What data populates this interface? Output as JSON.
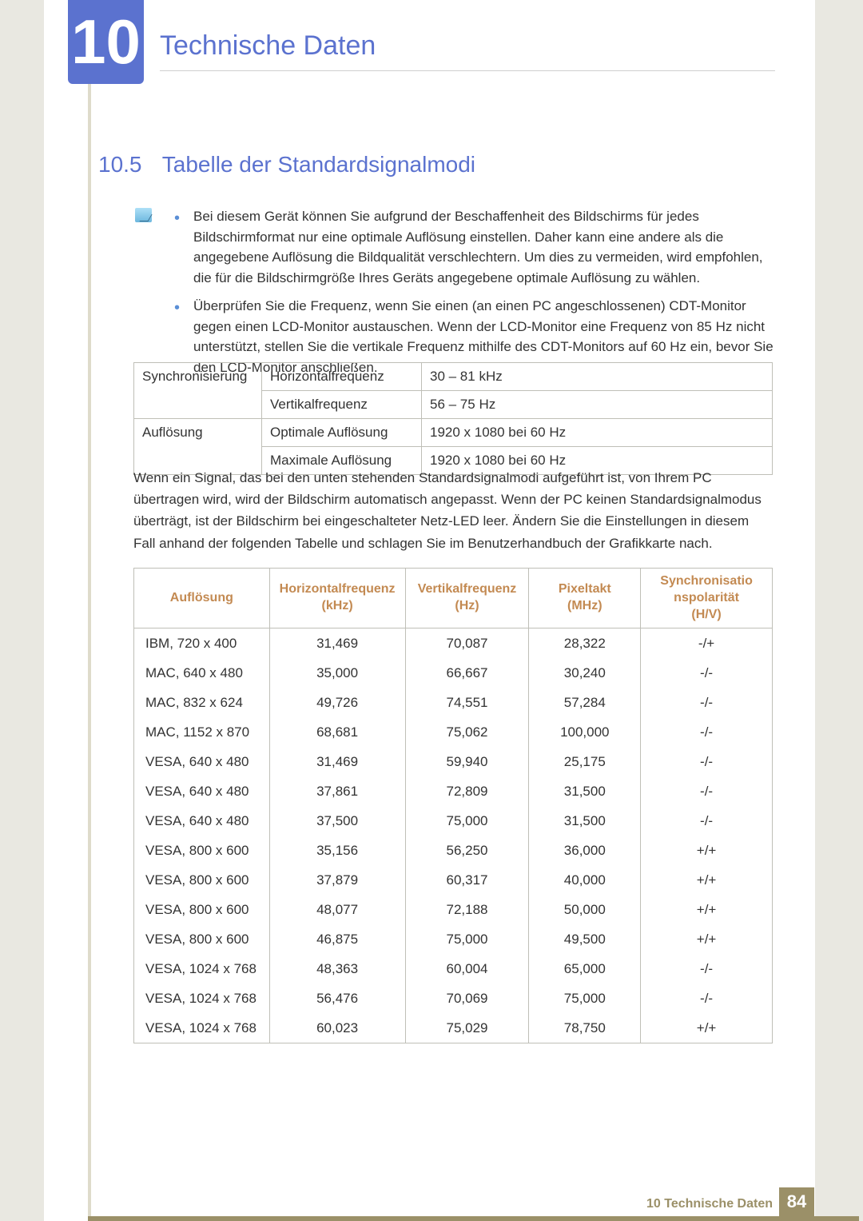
{
  "chapter": {
    "number": "10",
    "title": "Technische Daten"
  },
  "section": {
    "number": "10.5",
    "title": "Tabelle der Standardsignalmodi"
  },
  "bullets": [
    "Bei diesem Gerät können Sie aufgrund der Beschaffenheit des Bildschirms für jedes Bildschirmformat nur eine optimale Auflösung einstellen. Daher kann eine andere als die angegebene Auflösung die Bildqualität verschlechtern. Um dies zu vermeiden, wird empfohlen, die für die Bildschirmgröße Ihres Geräts angegebene optimale Auflösung zu wählen.",
    "Überprüfen Sie die Frequenz, wenn Sie einen (an einen PC angeschlossenen) CDT-Monitor gegen einen LCD-Monitor austauschen. Wenn der LCD-Monitor eine Frequenz von 85 Hz nicht unterstützt, stellen Sie die vertikale Frequenz mithilfe des CDT-Monitors auf 60 Hz ein, bevor Sie den LCD-Monitor anschließen."
  ],
  "spec_rows": [
    {
      "a": "Synchronisierung",
      "b": "Horizontalfrequenz",
      "c": "30 – 81 kHz",
      "rowspan": 2
    },
    {
      "a": "",
      "b": "Vertikalfrequenz",
      "c": "56 – 75 Hz"
    },
    {
      "a": "Auflösung",
      "b": "Optimale Auflösung",
      "c": "1920 x 1080 bei 60 Hz",
      "rowspan": 2
    },
    {
      "a": "",
      "b": "Maximale Auflösung",
      "c": "1920 x 1080 bei 60 Hz"
    }
  ],
  "note_paragraph": "Wenn ein Signal, das bei den unten stehenden Standardsignalmodi aufgeführt ist, von Ihrem PC übertragen wird, wird der Bildschirm automatisch angepasst. Wenn der PC keinen Standardsignalmodus überträgt, ist der Bildschirm bei eingeschalteter Netz-LED leer. Ändern Sie die Einstellungen in diesem Fall anhand der folgenden Tabelle und schlagen Sie im Benutzerhandbuch der Grafikkarte nach.",
  "signal": {
    "headers": [
      "Auflösung",
      "Horizontalfrequenz (kHz)",
      "Vertikalfrequenz (Hz)",
      "Pixeltakt (MHz)",
      "Synchronisationspolarität (H/V)"
    ],
    "col_widths": [
      "170px",
      "170px",
      "155px",
      "140px",
      "165px"
    ],
    "rows": [
      [
        "IBM, 720 x 400",
        "31,469",
        "70,087",
        "28,322",
        "-/+"
      ],
      [
        "MAC, 640 x 480",
        "35,000",
        "66,667",
        "30,240",
        "-/-"
      ],
      [
        "MAC, 832 x 624",
        "49,726",
        "74,551",
        "57,284",
        "-/-"
      ],
      [
        "MAC, 1152 x 870",
        "68,681",
        "75,062",
        "100,000",
        "-/-"
      ],
      [
        "VESA, 640 x 480",
        "31,469",
        "59,940",
        "25,175",
        "-/-"
      ],
      [
        "VESA, 640 x 480",
        "37,861",
        "72,809",
        "31,500",
        "-/-"
      ],
      [
        "VESA, 640 x 480",
        "37,500",
        "75,000",
        "31,500",
        "-/-"
      ],
      [
        "VESA, 800 x 600",
        "35,156",
        "56,250",
        "36,000",
        "+/+"
      ],
      [
        "VESA, 800 x 600",
        "37,879",
        "60,317",
        "40,000",
        "+/+"
      ],
      [
        "VESA, 800 x 600",
        "48,077",
        "72,188",
        "50,000",
        "+/+"
      ],
      [
        "VESA, 800 x 600",
        "46,875",
        "75,000",
        "49,500",
        "+/+"
      ],
      [
        "VESA, 1024 x 768",
        "48,363",
        "60,004",
        "65,000",
        "-/-"
      ],
      [
        "VESA, 1024 x 768",
        "56,476",
        "70,069",
        "75,000",
        "-/-"
      ],
      [
        "VESA, 1024 x 768",
        "60,023",
        "75,029",
        "78,750",
        "+/+"
      ]
    ]
  },
  "footer": {
    "label": "10 Technische Daten",
    "page": "84"
  },
  "colors": {
    "accent": "#5b72cf",
    "header_text": "#c38a52",
    "footer": "#9b9068",
    "border": "#bfbfb7",
    "page_bg": "#ffffff",
    "body_bg": "#e9e8e1"
  }
}
